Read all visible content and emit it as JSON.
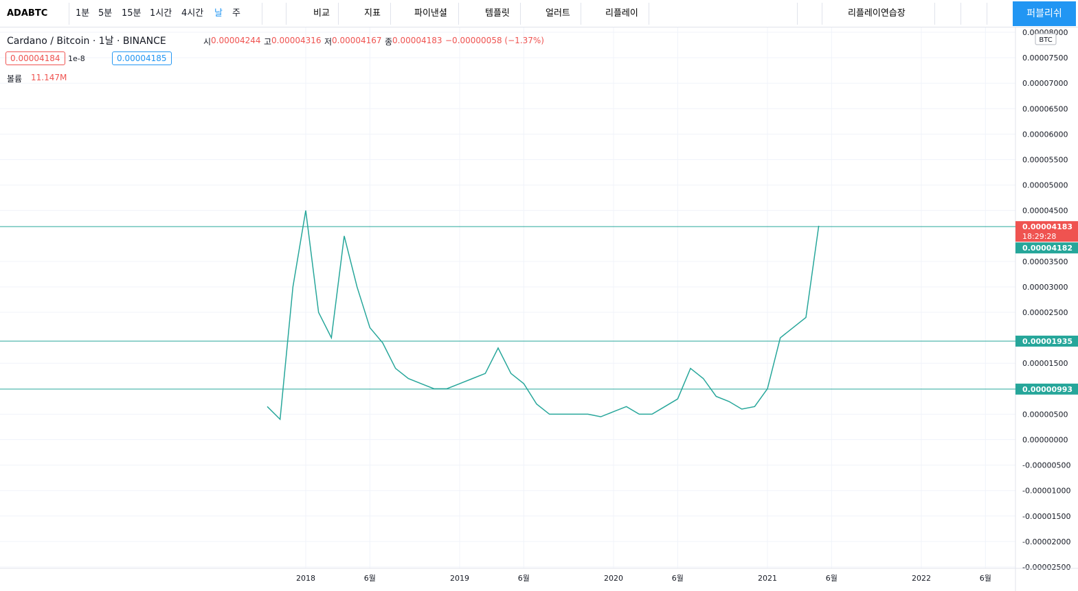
{
  "toolbar": {
    "symbol": "ADABTC",
    "intervals": [
      "1분",
      "5분",
      "15분",
      "1시간",
      "4시간",
      "날",
      "주"
    ],
    "buttons": [
      "비교",
      "지표",
      "파이낸셜",
      "템플릿",
      "얼러트",
      "리플레이"
    ],
    "layout": "리플레이연습장",
    "publish": "퍼블리쉬"
  },
  "legend": {
    "title": "Cardano / Bitcoin · 1날 · BINANCE",
    "ohlc_labels": [
      "시",
      "고",
      "저",
      "종"
    ],
    "ohlc": [
      4.244e-05,
      4.316e-05,
      4.167e-05,
      4.183e-05
    ],
    "change": "−0.00000058 (−1.37%)",
    "bid": 4.184e-05,
    "spread": 1e-08,
    "ask": 4.185e-05,
    "volume_label": "볼륨",
    "volume": "11.147M"
  },
  "chart_data": {
    "type": "line",
    "color": "#26a69a",
    "x": [
      "2017-10",
      "2017-11",
      "2017-12",
      "2018-01",
      "2018-02",
      "2018-03",
      "2018-04",
      "2018-05",
      "2018-06",
      "2018-07",
      "2018-08",
      "2018-09",
      "2018-10",
      "2018-11",
      "2018-12",
      "2019-01",
      "2019-02",
      "2019-03",
      "2019-04",
      "2019-05",
      "2019-06",
      "2019-07",
      "2019-08",
      "2019-09",
      "2019-10",
      "2019-11",
      "2019-12",
      "2020-01",
      "2020-02",
      "2020-03",
      "2020-04",
      "2020-05",
      "2020-06",
      "2020-07",
      "2020-08",
      "2020-09",
      "2020-10",
      "2020-11",
      "2020-12",
      "2021-01",
      "2021-02",
      "2021-03",
      "2021-04",
      "2021-05"
    ],
    "values": [
      6.5e-06,
      4e-06,
      3e-05,
      4.5e-05,
      2.5e-05,
      2e-05,
      4e-05,
      3e-05,
      2.2e-05,
      1.9e-05,
      1.4e-05,
      1.2e-05,
      1.1e-05,
      1e-05,
      1e-05,
      1.1e-05,
      1.2e-05,
      1.3e-05,
      1.8e-05,
      1.3e-05,
      1.1e-05,
      7e-06,
      5e-06,
      5e-06,
      5e-06,
      5e-06,
      4.5e-06,
      5.5e-06,
      6.5e-06,
      5e-06,
      5e-06,
      6.5e-06,
      8e-06,
      1.4e-05,
      1.2e-05,
      8.5e-06,
      7.5e-06,
      6e-06,
      6.5e-06,
      1e-05,
      2e-05,
      2.2e-05,
      2.4e-05,
      4.2e-05
    ],
    "ylim": [
      -2.5e-05,
      8e-05
    ],
    "yticks": [
      {
        "value": 8e-05,
        "label": "0.00008000"
      },
      {
        "value": 7.5e-05,
        "label": "0.00007500"
      },
      {
        "value": 7e-05,
        "label": "0.00007000"
      },
      {
        "value": 6.5e-05,
        "label": "0.00006500"
      },
      {
        "value": 6e-05,
        "label": "0.00006000"
      },
      {
        "value": 5.5e-05,
        "label": "0.00005500"
      },
      {
        "value": 5e-05,
        "label": "0.00005000"
      },
      {
        "value": 4.5e-05,
        "label": "0.00004500"
      },
      {
        "value": 3.5e-05,
        "label": "0.00003500"
      },
      {
        "value": 3e-05,
        "label": "0.00003000"
      },
      {
        "value": 2.5e-05,
        "label": "0.00002500"
      },
      {
        "value": 1.5e-05,
        "label": "0.00001500"
      },
      {
        "value": 5e-06,
        "label": "0.00000500"
      },
      {
        "value": 0,
        "label": "0.00000000"
      },
      {
        "value": -5e-06,
        "label": "-0.00000500"
      },
      {
        "value": -1e-05,
        "label": "-0.00001000"
      },
      {
        "value": -1.5e-05,
        "label": "-0.00001500"
      },
      {
        "value": -2e-05,
        "label": "-0.00002000"
      },
      {
        "value": -2.5e-05,
        "label": "-0.00002500"
      }
    ],
    "xticks": [
      {
        "value": "2018-01",
        "label": "2018"
      },
      {
        "value": "2018-06",
        "label": "6월"
      },
      {
        "value": "2019-01",
        "label": "2019"
      },
      {
        "value": "2019-06",
        "label": "6월"
      },
      {
        "value": "2020-01",
        "label": "2020"
      },
      {
        "value": "2020-06",
        "label": "6월"
      },
      {
        "value": "2021-01",
        "label": "2021"
      },
      {
        "value": "2021-06",
        "label": "6월"
      },
      {
        "value": "2022-01",
        "label": "2022"
      },
      {
        "value": "2022-06",
        "label": "6월"
      }
    ],
    "grid": true,
    "currency": "BTC",
    "levels": [
      {
        "value": 4.183e-05,
        "color": "#ef5350"
      },
      {
        "value": 1.935e-05,
        "color": "#26a69a"
      },
      {
        "value": 9.93e-06,
        "color": "#26a69a"
      }
    ],
    "countdown": "18:29:28",
    "last_price_alt": 4.182e-05
  }
}
